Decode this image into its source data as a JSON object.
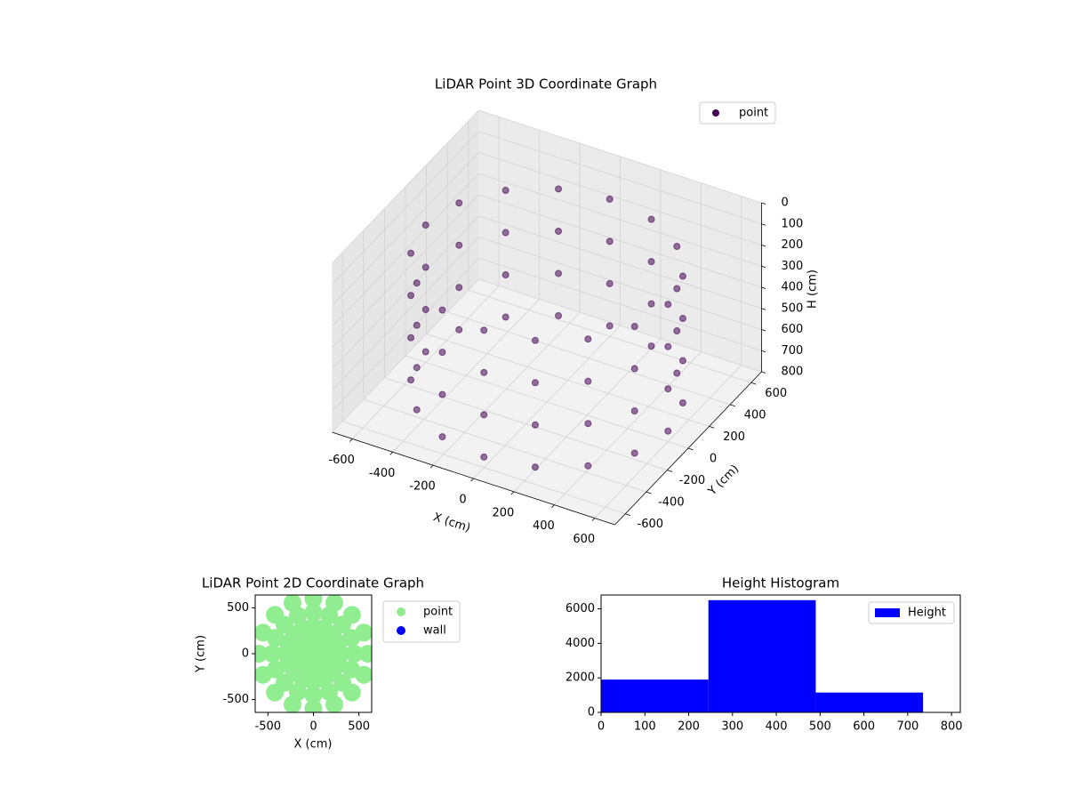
{
  "chart_data": [
    {
      "type": "scatter3d",
      "title": "LiDAR Point 3D Coordinate Graph",
      "x_label": "X (cm)",
      "y_label": "Y (cm)",
      "z_label": "H (cm)",
      "xlim": [
        -700,
        700
      ],
      "ylim": [
        -700,
        700
      ],
      "zlim": [
        0,
        800
      ],
      "xticks": [
        -600,
        -400,
        -200,
        0,
        200,
        400,
        600
      ],
      "yticks": [
        -600,
        -400,
        -200,
        0,
        200,
        400,
        600
      ],
      "zticks": [
        0,
        100,
        200,
        300,
        400,
        500,
        600,
        700,
        800
      ],
      "legend": "upper right",
      "series": [
        {
          "name": "point",
          "color": "#440154",
          "x": [
            600,
            554,
            424,
            230,
            0,
            -230,
            -424,
            -554,
            -600,
            -554,
            -424,
            -230,
            0,
            230,
            424,
            554,
            600,
            554,
            424,
            230,
            0,
            -230,
            -424,
            -554,
            -600,
            -554,
            -424,
            -230,
            0,
            230,
            424,
            554,
            600,
            554,
            424,
            230,
            0,
            -230,
            -424,
            -554,
            -600,
            -554,
            -424,
            -230,
            0,
            230,
            424,
            554,
            600,
            554,
            424,
            230,
            0,
            -230,
            -424,
            -554,
            -600,
            -554,
            -424,
            -230,
            0,
            230,
            424,
            554
          ],
          "y": [
            0,
            230,
            424,
            554,
            600,
            554,
            424,
            230,
            0,
            -230,
            -424,
            -554,
            -600,
            -554,
            -424,
            -230,
            0,
            230,
            424,
            554,
            600,
            554,
            424,
            230,
            0,
            -230,
            -424,
            -554,
            -600,
            -554,
            -424,
            -230,
            0,
            230,
            424,
            554,
            600,
            554,
            424,
            230,
            0,
            -230,
            -424,
            -554,
            -600,
            -554,
            -424,
            -230,
            0,
            230,
            424,
            554,
            600,
            554,
            424,
            230,
            0,
            -230,
            -424,
            -554,
            -600,
            -554,
            -424,
            -230
          ],
          "z": [
            150,
            150,
            150,
            150,
            150,
            150,
            150,
            150,
            150,
            150,
            150,
            150,
            150,
            150,
            150,
            150,
            350,
            350,
            350,
            350,
            350,
            350,
            350,
            350,
            350,
            350,
            350,
            350,
            350,
            350,
            350,
            350,
            550,
            550,
            550,
            550,
            550,
            550,
            550,
            550,
            550,
            550,
            550,
            550,
            550,
            550,
            550,
            550,
            750,
            750,
            750,
            750,
            750,
            750,
            750,
            750,
            750,
            750,
            750,
            750,
            750,
            750,
            750,
            750
          ]
        }
      ]
    },
    {
      "type": "scatter",
      "title": "LiDAR Point 2D Coordinate Graph",
      "x_label": "X (cm)",
      "y_label": "Y (cm)",
      "xlim": [
        -640,
        640
      ],
      "ylim": [
        -640,
        640
      ],
      "xticks": [
        -500,
        0,
        500
      ],
      "yticks": [
        -500,
        0,
        500
      ],
      "legend": "outside right",
      "series": [
        {
          "name": "point",
          "color": "#90ee90",
          "x": [
            600,
            554,
            424,
            230,
            0,
            -230,
            -424,
            -554,
            -600,
            -554,
            -424,
            -230,
            0,
            230,
            424,
            554,
            450,
            416,
            318,
            172,
            0,
            -172,
            -318,
            -416,
            -450,
            -416,
            -318,
            -172,
            0,
            172,
            318,
            416,
            300,
            277,
            212,
            115,
            0,
            -115,
            -212,
            -277,
            -300,
            -277,
            -212,
            -115,
            0,
            115,
            212,
            277,
            150,
            139,
            106,
            57,
            0,
            -57,
            -106,
            -139,
            -150,
            -139,
            -106,
            -57,
            0,
            57,
            106,
            139,
            0
          ],
          "y": [
            0,
            230,
            424,
            554,
            600,
            554,
            424,
            230,
            0,
            -230,
            -424,
            -554,
            -600,
            -554,
            -424,
            -230,
            0,
            172,
            318,
            416,
            450,
            416,
            318,
            172,
            0,
            -172,
            -318,
            -416,
            -450,
            -416,
            -318,
            -172,
            0,
            115,
            212,
            277,
            300,
            277,
            212,
            115,
            0,
            -115,
            -212,
            -277,
            -300,
            -277,
            -212,
            -115,
            0,
            57,
            106,
            139,
            150,
            139,
            106,
            57,
            0,
            -57,
            -106,
            -139,
            -150,
            -139,
            -106,
            -57,
            0
          ]
        },
        {
          "name": "wall",
          "color": "#0000ff",
          "x": [],
          "y": []
        }
      ]
    },
    {
      "type": "histogram",
      "title": "Height Histogram",
      "name": "Height",
      "color": "#0000ff",
      "bins": [
        0,
        245,
        490,
        735
      ],
      "counts": [
        1900,
        6500,
        1150
      ],
      "xlim": [
        0,
        820
      ],
      "ylim": [
        0,
        6800
      ],
      "xticks": [
        0,
        100,
        200,
        300,
        400,
        500,
        600,
        700,
        800
      ],
      "yticks": [
        0,
        2000,
        4000,
        6000
      ],
      "legend": "upper right"
    }
  ]
}
